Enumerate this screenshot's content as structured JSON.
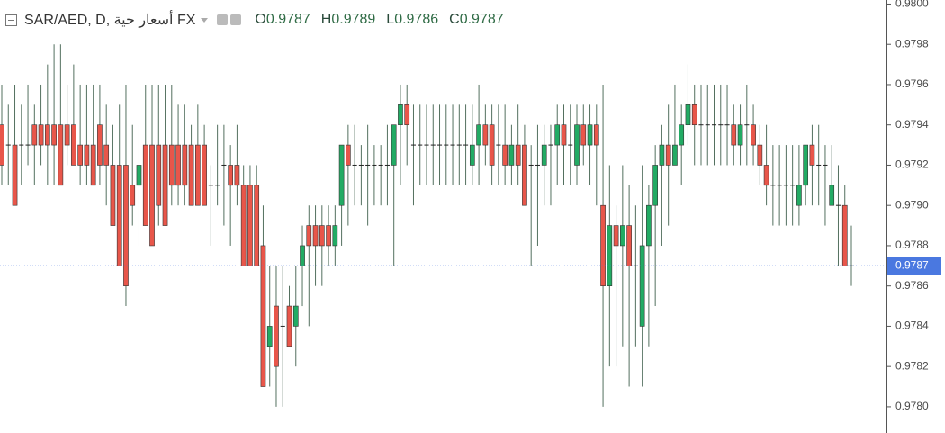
{
  "chart_data": {
    "type": "candlestick",
    "title": "SAR/AED, D, أسعار حية FX",
    "ohlc": [
      {
        "label": "O",
        "value": 0.9787
      },
      {
        "label": "H",
        "value": 0.9789
      },
      {
        "label": "L",
        "value": 0.9786
      },
      {
        "label": "C",
        "value": 0.9787
      }
    ],
    "open": [
      0.9794,
      0.9793,
      0.9793,
      0.9793,
      0.9793,
      0.9794,
      0.9794,
      0.9794,
      0.9794,
      0.9794,
      0.9794,
      0.9794,
      0.9793,
      0.9793,
      0.9793,
      0.9794,
      0.9793,
      0.9792,
      0.9792,
      0.9792,
      0.9791,
      0.9791,
      0.9793,
      0.9793,
      0.9793,
      0.9793,
      0.9793,
      0.9793,
      0.9793,
      0.9793,
      0.9793,
      0.9793,
      0.9791,
      0.9791,
      0.9792,
      0.9792,
      0.9792,
      0.9791,
      0.9791,
      0.9791,
      0.9788,
      0.9783,
      0.9785,
      0.9784,
      0.9785,
      0.9784,
      0.9787,
      0.9789,
      0.9789,
      0.9789,
      0.9789,
      0.9788,
      0.979,
      0.9793,
      0.9792,
      0.9792,
      0.9792,
      0.9792,
      0.9792,
      0.9792,
      0.9792,
      0.9794,
      0.9795,
      0.9793,
      0.9793,
      0.9793,
      0.9793,
      0.9793,
      0.9793,
      0.9793,
      0.9793,
      0.9793,
      0.9792,
      0.9793,
      0.9794,
      0.9794,
      0.9793,
      0.9793,
      0.9792,
      0.9793,
      0.9793,
      0.9792,
      0.9792,
      0.9792,
      0.9793,
      0.9793,
      0.9794,
      0.9793,
      0.9792,
      0.9794,
      0.9793,
      0.9794,
      0.979,
      0.9786,
      0.9789,
      0.9788,
      0.9789,
      0.9787,
      0.9784,
      0.9788,
      0.979,
      0.9792,
      0.9793,
      0.9792,
      0.9793,
      0.9794,
      0.9795,
      0.9794,
      0.9794,
      0.9794,
      0.9794,
      0.9794,
      0.9794,
      0.9793,
      0.9794,
      0.9794,
      0.9793,
      0.9792,
      0.9791,
      0.9791,
      0.9791,
      0.9791,
      0.979,
      0.9791,
      0.9793,
      0.9792,
      0.9792,
      0.979,
      0.979,
      0.979,
      0.9787
    ],
    "high": [
      0.9796,
      0.9795,
      0.9796,
      0.9795,
      0.9796,
      0.9795,
      0.9796,
      0.9797,
      0.9798,
      0.9798,
      0.9796,
      0.9797,
      0.9796,
      0.9796,
      0.9796,
      0.9796,
      0.9795,
      0.9794,
      0.9795,
      0.9796,
      0.9794,
      0.9794,
      0.9796,
      0.9796,
      0.9796,
      0.9796,
      0.9796,
      0.9795,
      0.9795,
      0.9794,
      0.9795,
      0.9794,
      0.9792,
      0.9794,
      0.9794,
      0.9793,
      0.9794,
      0.9792,
      0.9792,
      0.9792,
      0.979,
      0.9787,
      0.9787,
      0.9787,
      0.9786,
      0.9787,
      0.9789,
      0.979,
      0.979,
      0.979,
      0.979,
      0.979,
      0.9793,
      0.9794,
      0.9794,
      0.9793,
      0.9794,
      0.9793,
      0.9793,
      0.9794,
      0.9794,
      0.9796,
      0.9796,
      0.9795,
      0.9795,
      0.9795,
      0.9795,
      0.9795,
      0.9795,
      0.9795,
      0.9795,
      0.9795,
      0.9795,
      0.9796,
      0.9795,
      0.9795,
      0.9795,
      0.9795,
      0.9794,
      0.9795,
      0.9794,
      0.9793,
      0.9794,
      0.9794,
      0.9794,
      0.9795,
      0.9795,
      0.9795,
      0.9795,
      0.9795,
      0.9795,
      0.9795,
      0.9796,
      0.9792,
      0.979,
      0.9792,
      0.9791,
      0.979,
      0.9792,
      0.9791,
      0.9793,
      0.9794,
      0.9795,
      0.9796,
      0.9795,
      0.9797,
      0.9796,
      0.9796,
      0.9796,
      0.9796,
      0.9796,
      0.9796,
      0.9795,
      0.9795,
      0.9796,
      0.9795,
      0.9794,
      0.9794,
      0.9793,
      0.9793,
      0.9793,
      0.9793,
      0.9793,
      0.9793,
      0.9794,
      0.9794,
      0.9793,
      0.9793,
      0.9792,
      0.9791,
      0.9789
    ],
    "low": [
      0.9791,
      0.9791,
      0.979,
      0.9791,
      0.9792,
      0.9791,
      0.9792,
      0.9791,
      0.9791,
      0.9791,
      0.9792,
      0.9792,
      0.9791,
      0.9791,
      0.9791,
      0.9791,
      0.979,
      0.9789,
      0.9787,
      0.9785,
      0.9789,
      0.9788,
      0.9789,
      0.9788,
      0.9789,
      0.9789,
      0.979,
      0.979,
      0.979,
      0.979,
      0.979,
      0.979,
      0.9788,
      0.979,
      0.9789,
      0.9788,
      0.979,
      0.9787,
      0.9787,
      0.9787,
      0.9781,
      0.9781,
      0.978,
      0.978,
      0.9783,
      0.9782,
      0.9785,
      0.9784,
      0.9786,
      0.9786,
      0.9787,
      0.9787,
      0.9788,
      0.9789,
      0.979,
      0.979,
      0.9789,
      0.979,
      0.979,
      0.979,
      0.9787,
      0.9791,
      0.9792,
      0.979,
      0.9791,
      0.9791,
      0.9791,
      0.9791,
      0.9791,
      0.9791,
      0.9791,
      0.9791,
      0.9791,
      0.9791,
      0.9792,
      0.9791,
      0.9791,
      0.9791,
      0.9791,
      0.9791,
      0.979,
      0.9787,
      0.9788,
      0.979,
      0.979,
      0.9791,
      0.9791,
      0.9791,
      0.9791,
      0.9792,
      0.9791,
      0.979,
      0.978,
      0.9782,
      0.9782,
      0.9783,
      0.9781,
      0.9783,
      0.9781,
      0.9783,
      0.9785,
      0.9788,
      0.9789,
      0.9792,
      0.9791,
      0.9793,
      0.9792,
      0.9792,
      0.9792,
      0.9792,
      0.9792,
      0.9792,
      0.9792,
      0.9792,
      0.9792,
      0.9792,
      0.9791,
      0.979,
      0.9789,
      0.9789,
      0.9789,
      0.9789,
      0.9789,
      0.979,
      0.979,
      0.979,
      0.9789,
      0.979,
      0.9787,
      0.9787,
      0.9786
    ],
    "close": [
      0.9792,
      0.9793,
      0.979,
      0.9793,
      0.9793,
      0.9793,
      0.9793,
      0.9793,
      0.9793,
      0.9791,
      0.9793,
      0.9792,
      0.9792,
      0.9792,
      0.9791,
      0.9792,
      0.9792,
      0.9789,
      0.9787,
      0.9786,
      0.979,
      0.9792,
      0.9789,
      0.9788,
      0.979,
      0.9789,
      0.9791,
      0.9791,
      0.9791,
      0.979,
      0.979,
      0.979,
      0.9791,
      0.9791,
      0.9792,
      0.9791,
      0.9791,
      0.9787,
      0.9787,
      0.9787,
      0.9781,
      0.9784,
      0.9782,
      0.9784,
      0.9783,
      0.9785,
      0.9788,
      0.9788,
      0.9788,
      0.9788,
      0.9788,
      0.9789,
      0.9793,
      0.9792,
      0.9792,
      0.9792,
      0.9792,
      0.9792,
      0.9792,
      0.9792,
      0.9794,
      0.9795,
      0.9794,
      0.9793,
      0.9793,
      0.9793,
      0.9793,
      0.9793,
      0.9793,
      0.9793,
      0.9793,
      0.9793,
      0.9793,
      0.9794,
      0.9793,
      0.9792,
      0.9793,
      0.9792,
      0.9793,
      0.9792,
      0.979,
      0.9792,
      0.9792,
      0.9793,
      0.9793,
      0.9794,
      0.9793,
      0.9793,
      0.9794,
      0.9793,
      0.9794,
      0.9793,
      0.9786,
      0.9789,
      0.9788,
      0.9789,
      0.9787,
      0.9787,
      0.9788,
      0.979,
      0.9792,
      0.9793,
      0.9792,
      0.9793,
      0.9794,
      0.9795,
      0.9794,
      0.9794,
      0.9794,
      0.9794,
      0.9794,
      0.9794,
      0.9793,
      0.9794,
      0.9794,
      0.9793,
      0.9792,
      0.9791,
      0.9791,
      0.9791,
      0.9791,
      0.9791,
      0.9791,
      0.9793,
      0.9792,
      0.9792,
      0.9792,
      0.9791,
      0.979,
      0.9787,
      0.9787
    ],
    "up_color": "#22ab64",
    "down_color": "#e8564a",
    "wick_color": "#53705f",
    "last_price": 0.9787,
    "last_price_color": "#4a78e0",
    "ylim": [
      0.97787,
      0.98002
    ],
    "yticks": [
      {
        "value": 0.978,
        "label": "0.9780"
      },
      0.9782,
      0.9784,
      0.9786,
      0.9788,
      {
        "value": 0.979,
        "label": "0.9790"
      },
      0.9792,
      0.9794,
      0.9796,
      0.9798,
      {
        "value": 0.98,
        "label": "0.9800"
      }
    ],
    "grid": false
  }
}
